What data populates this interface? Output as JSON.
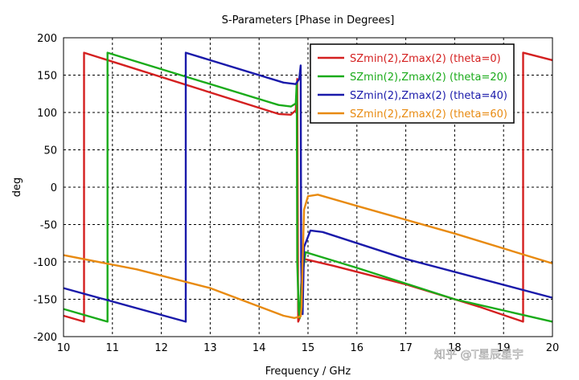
{
  "chart_data": {
    "type": "line",
    "title": "S-Parameters [Phase in Degrees]",
    "xlabel": "Frequency / GHz",
    "ylabel": "deg",
    "xlim": [
      10,
      20
    ],
    "ylim": [
      -200,
      200
    ],
    "xticks": [
      10,
      11,
      12,
      13,
      14,
      15,
      16,
      17,
      18,
      19,
      20
    ],
    "yticks": [
      200,
      150,
      100,
      50,
      0,
      -50,
      -100,
      -150,
      -200
    ],
    "grid": true,
    "legend_position": "top-right",
    "series": [
      {
        "name": "SZmin(2),Zmax(2) (theta=0)",
        "color": "#d42020",
        "points": [
          [
            10,
            -172
          ],
          [
            10.42,
            -180
          ],
          [
            10.42,
            180
          ],
          [
            14.4,
            98
          ],
          [
            14.65,
            97
          ],
          [
            14.75,
            103
          ],
          [
            14.78,
            145
          ],
          [
            14.8,
            -180
          ],
          [
            14.83,
            -175
          ],
          [
            14.88,
            -110
          ],
          [
            14.92,
            -96
          ],
          [
            15.5,
            -105
          ],
          [
            17,
            -130
          ],
          [
            18.5,
            -160
          ],
          [
            19.4,
            -180
          ],
          [
            19.4,
            180
          ],
          [
            20,
            170
          ]
        ]
      },
      {
        "name": "SZmin(2),Zmax(2) (theta=20)",
        "color": "#1aab1a",
        "points": [
          [
            10,
            -163
          ],
          [
            10.9,
            -180
          ],
          [
            10.9,
            180
          ],
          [
            14.4,
            110
          ],
          [
            14.65,
            108
          ],
          [
            14.75,
            112
          ],
          [
            14.77,
            140
          ],
          [
            14.78,
            -100
          ],
          [
            14.81,
            -165
          ],
          [
            14.83,
            -175
          ],
          [
            14.86,
            -130
          ],
          [
            14.95,
            -87
          ],
          [
            16,
            -108
          ],
          [
            18,
            -150
          ],
          [
            20,
            -180
          ]
        ]
      },
      {
        "name": "SZmin(2),Zmax(2) (theta=40)",
        "color": "#1a1aaa",
        "points": [
          [
            10,
            -135
          ],
          [
            12.5,
            -180
          ],
          [
            12.5,
            180
          ],
          [
            14.5,
            140
          ],
          [
            14.75,
            138
          ],
          [
            14.82,
            145
          ],
          [
            14.85,
            163
          ],
          [
            14.86,
            -100
          ],
          [
            14.87,
            -140
          ],
          [
            14.89,
            -170
          ],
          [
            14.92,
            -80
          ],
          [
            15.05,
            -58
          ],
          [
            15.3,
            -60
          ],
          [
            17,
            -96
          ],
          [
            20,
            -148
          ]
        ]
      },
      {
        "name": "SZmin(2),Zmax(2) (theta=60)",
        "color": "#e88a10",
        "points": [
          [
            10,
            -91
          ],
          [
            11.5,
            -110
          ],
          [
            13,
            -135
          ],
          [
            14.5,
            -172
          ],
          [
            14.72,
            -175
          ],
          [
            14.85,
            -173
          ],
          [
            14.87,
            -160
          ],
          [
            14.89,
            -100
          ],
          [
            14.92,
            -30
          ],
          [
            15,
            -12
          ],
          [
            15.2,
            -10
          ],
          [
            16,
            -25
          ],
          [
            18,
            -62
          ],
          [
            20,
            -102
          ]
        ]
      }
    ]
  },
  "watermark": "知乎 @T星辰星宇"
}
